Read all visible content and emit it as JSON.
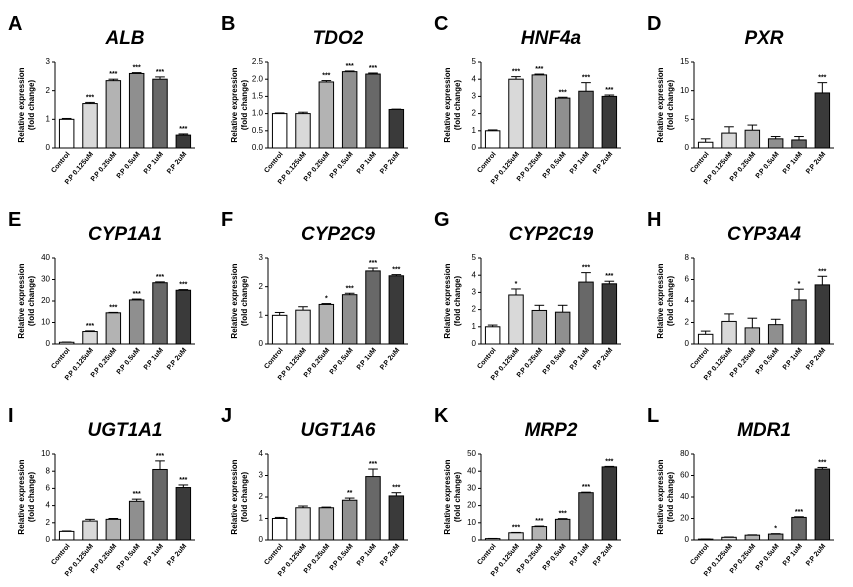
{
  "chart_data": [
    {
      "type": "bar",
      "panel": "A",
      "title": "ALB",
      "ylabel": [
        "Relative expression",
        "(fold change)"
      ],
      "categories": [
        "Control",
        "P.P 0.125uM",
        "P.P 0.25uM",
        "P.P 0.5uM",
        "P.P 1uM",
        "P.P 2uM"
      ],
      "values": [
        1.0,
        1.55,
        2.35,
        2.6,
        2.4,
        0.45
      ],
      "errors": [
        0.03,
        0.04,
        0.05,
        0.03,
        0.08,
        0.04
      ],
      "significance": [
        null,
        "***",
        "***",
        "***",
        "***",
        "***"
      ],
      "colors": [
        "#ffffff",
        "#d9d9d9",
        "#b3b3b3",
        "#8f8f8f",
        "#686868",
        "#3a3a3a"
      ],
      "ylim": [
        0,
        3
      ],
      "yticks": [
        0,
        1,
        2,
        3
      ]
    },
    {
      "type": "bar",
      "panel": "B",
      "title": "TDO2",
      "ylabel": [
        "Relative expression",
        "(fold change)"
      ],
      "categories": [
        "Control",
        "P.P 0.125uM",
        "P.P 0.25uM",
        "P.P 0.5uM",
        "P.P 1uM",
        "P.P 2uM"
      ],
      "values": [
        1.0,
        1.0,
        1.92,
        2.22,
        2.15,
        1.12
      ],
      "errors": [
        0.02,
        0.04,
        0.04,
        0.02,
        0.03,
        0.01
      ],
      "significance": [
        null,
        null,
        "***",
        "***",
        "***",
        null
      ],
      "colors": [
        "#ffffff",
        "#d9d9d9",
        "#b3b3b3",
        "#8f8f8f",
        "#686868",
        "#3a3a3a"
      ],
      "ylim": [
        0,
        2.5
      ],
      "yticks": [
        {
          "value": 0,
          "label": "0.0"
        },
        0.5,
        {
          "value": 1,
          "label": "1.0"
        },
        1.5,
        {
          "value": 2,
          "label": "2.0"
        },
        2.5
      ]
    },
    {
      "type": "bar",
      "panel": "C",
      "title": "HNF4a",
      "ylabel": [
        "Relative expression",
        "(fold change)"
      ],
      "categories": [
        "Control",
        "P.P 0.125uM",
        "P.P 0.25uM",
        "P.P 0.5uM",
        "P.P 1uM",
        "P.P 2uM"
      ],
      "values": [
        1.0,
        4.0,
        4.25,
        2.9,
        3.3,
        3.0
      ],
      "errors": [
        0.05,
        0.15,
        0.05,
        0.05,
        0.5,
        0.08
      ],
      "significance": [
        null,
        "***",
        "***",
        "***",
        "***",
        "***"
      ],
      "colors": [
        "#ffffff",
        "#d9d9d9",
        "#b3b3b3",
        "#8f8f8f",
        "#686868",
        "#3a3a3a"
      ],
      "ylim": [
        0,
        5
      ],
      "yticks": [
        0,
        1,
        2,
        3,
        4,
        5
      ]
    },
    {
      "type": "bar",
      "panel": "D",
      "title": "PXR",
      "ylabel": [
        "Relative expression",
        "(fold change)"
      ],
      "categories": [
        "Control",
        "P.P 0.125uM",
        "P.P 0.25uM",
        "P.P 0.5uM",
        "P.P 1uM",
        "P.P 2uM"
      ],
      "values": [
        1.0,
        2.6,
        3.1,
        1.6,
        1.4,
        9.6
      ],
      "errors": [
        0.6,
        1.1,
        0.9,
        0.4,
        0.6,
        1.8
      ],
      "significance": [
        null,
        null,
        null,
        null,
        null,
        "***"
      ],
      "colors": [
        "#ffffff",
        "#d9d9d9",
        "#b3b3b3",
        "#8f8f8f",
        "#686868",
        "#3a3a3a"
      ],
      "ylim": [
        0,
        15
      ],
      "yticks": [
        0,
        5,
        10,
        15
      ]
    },
    {
      "type": "bar",
      "panel": "E",
      "title": "CYP1A1",
      "ylabel": [
        "Relative expression",
        "(fold change)"
      ],
      "categories": [
        "Control",
        "P.P 0.125uM",
        "P.P 0.25uM",
        "P.P 0.5uM",
        "P.P 1uM",
        "P.P 2uM"
      ],
      "values": [
        0.8,
        5.8,
        14.5,
        20.5,
        28.5,
        25
      ],
      "errors": [
        0.1,
        0.3,
        0.2,
        0.4,
        0.4,
        0.3
      ],
      "significance": [
        null,
        "***",
        "***",
        "***",
        "***",
        "***"
      ],
      "colors": [
        "#ffffff",
        "#d9d9d9",
        "#b3b3b3",
        "#8f8f8f",
        "#686868",
        "#3a3a3a"
      ],
      "ylim": [
        0,
        40
      ],
      "yticks": [
        0,
        10,
        20,
        30,
        40
      ]
    },
    {
      "type": "bar",
      "panel": "F",
      "title": "CYP2C9",
      "ylabel": [
        "Relative expression",
        "(fold change)"
      ],
      "categories": [
        "Control",
        "P.P 0.125uM",
        "P.P 0.25uM",
        "P.P 0.5uM",
        "P.P 1uM",
        "P.P 2uM"
      ],
      "values": [
        1.0,
        1.18,
        1.38,
        1.72,
        2.55,
        2.38
      ],
      "errors": [
        0.1,
        0.12,
        0.03,
        0.05,
        0.1,
        0.04
      ],
      "significance": [
        null,
        null,
        "*",
        "***",
        "***",
        "***"
      ],
      "colors": [
        "#ffffff",
        "#d9d9d9",
        "#b3b3b3",
        "#8f8f8f",
        "#686868",
        "#3a3a3a"
      ],
      "ylim": [
        0,
        3
      ],
      "yticks": [
        0,
        1,
        2,
        3
      ]
    },
    {
      "type": "bar",
      "panel": "G",
      "title": "CYP2C19",
      "ylabel": [
        "Relative expression",
        "(fold change)"
      ],
      "categories": [
        "Control",
        "P.P 0.125uM",
        "P.P 0.25uM",
        "P.P 0.5uM",
        "P.P 1uM",
        "P.P 2uM"
      ],
      "values": [
        1.0,
        2.85,
        1.95,
        1.85,
        3.6,
        3.5
      ],
      "errors": [
        0.1,
        0.35,
        0.3,
        0.4,
        0.55,
        0.15
      ],
      "significance": [
        null,
        "*",
        null,
        null,
        "***",
        "***"
      ],
      "colors": [
        "#ffffff",
        "#d9d9d9",
        "#b3b3b3",
        "#8f8f8f",
        "#686868",
        "#3a3a3a"
      ],
      "ylim": [
        0,
        5
      ],
      "yticks": [
        0,
        1,
        2,
        3,
        4,
        5
      ]
    },
    {
      "type": "bar",
      "panel": "H",
      "title": "CYP3A4",
      "ylabel": [
        "Relative expression",
        "(fold change)"
      ],
      "categories": [
        "Control",
        "P.P 0.125uM",
        "P.P 0.25uM",
        "P.P 0.5uM",
        "P.P 1uM",
        "P.P 2uM"
      ],
      "values": [
        0.9,
        2.1,
        1.5,
        1.8,
        4.1,
        5.5
      ],
      "errors": [
        0.3,
        0.7,
        0.9,
        0.5,
        1.0,
        0.8
      ],
      "significance": [
        null,
        null,
        null,
        null,
        "*",
        "***"
      ],
      "colors": [
        "#ffffff",
        "#d9d9d9",
        "#b3b3b3",
        "#8f8f8f",
        "#686868",
        "#3a3a3a"
      ],
      "ylim": [
        0,
        8
      ],
      "yticks": [
        0,
        2,
        4,
        6,
        8
      ]
    },
    {
      "type": "bar",
      "panel": "I",
      "title": "UGT1A1",
      "ylabel": [
        "Relative expression",
        "(fold change)"
      ],
      "categories": [
        "Control",
        "P.P 0.125uM",
        "P.P 0.25uM",
        "P.P 0.5uM",
        "P.P 1uM",
        "P.P 2uM"
      ],
      "values": [
        1.0,
        2.2,
        2.4,
        4.5,
        8.2,
        6.1
      ],
      "errors": [
        0.05,
        0.2,
        0.1,
        0.25,
        1.0,
        0.3
      ],
      "significance": [
        null,
        null,
        null,
        "***",
        "***",
        "***"
      ],
      "colors": [
        "#ffffff",
        "#d9d9d9",
        "#b3b3b3",
        "#8f8f8f",
        "#686868",
        "#3a3a3a"
      ],
      "ylim": [
        0,
        10
      ],
      "yticks": [
        0,
        2,
        4,
        6,
        8,
        10
      ]
    },
    {
      "type": "bar",
      "panel": "J",
      "title": "UGT1A6",
      "ylabel": [
        "Relative expression",
        "(fold change)"
      ],
      "categories": [
        "Control",
        "P.P 0.125uM",
        "P.P 0.25uM",
        "P.P 0.5uM",
        "P.P 1uM",
        "P.P 2uM"
      ],
      "values": [
        1.0,
        1.5,
        1.5,
        1.85,
        2.95,
        2.05
      ],
      "errors": [
        0.05,
        0.08,
        0.03,
        0.1,
        0.35,
        0.15
      ],
      "significance": [
        null,
        null,
        null,
        "**",
        "***",
        "***"
      ],
      "colors": [
        "#ffffff",
        "#d9d9d9",
        "#b3b3b3",
        "#8f8f8f",
        "#686868",
        "#3a3a3a"
      ],
      "ylim": [
        0,
        4
      ],
      "yticks": [
        0,
        1,
        2,
        3,
        4
      ]
    },
    {
      "type": "bar",
      "panel": "K",
      "title": "MRP2",
      "ylabel": [
        "Relative expression",
        "(fold change)"
      ],
      "categories": [
        "Control",
        "P.P 0.125uM",
        "P.P 0.25uM",
        "P.P 0.5uM",
        "P.P 1uM",
        "P.P 2uM"
      ],
      "values": [
        0.8,
        4.2,
        7.8,
        12,
        27.5,
        42.5
      ],
      "errors": [
        0.1,
        0.2,
        0.3,
        0.4,
        0.3,
        0.3
      ],
      "significance": [
        null,
        "***",
        "***",
        "***",
        "***",
        "***"
      ],
      "colors": [
        "#ffffff",
        "#d9d9d9",
        "#b3b3b3",
        "#8f8f8f",
        "#686868",
        "#3a3a3a"
      ],
      "ylim": [
        0,
        50
      ],
      "yticks": [
        0,
        10,
        20,
        30,
        40,
        50
      ]
    },
    {
      "type": "bar",
      "panel": "L",
      "title": "MDR1",
      "ylabel": [
        "Relative expression",
        "(fold change)"
      ],
      "categories": [
        "Control",
        "P.P 0.125uM",
        "P.P 0.25uM",
        "P.P 0.5uM",
        "P.P 1uM",
        "P.P 2uM"
      ],
      "values": [
        0.8,
        2.5,
        4.5,
        5.5,
        21,
        66
      ],
      "errors": [
        0.1,
        0.3,
        0.3,
        0.4,
        0.6,
        1.5
      ],
      "significance": [
        null,
        null,
        null,
        "*",
        "***",
        "***"
      ],
      "colors": [
        "#ffffff",
        "#d9d9d9",
        "#b3b3b3",
        "#8f8f8f",
        "#686868",
        "#3a3a3a"
      ],
      "ylim": [
        0,
        80
      ],
      "yticks": [
        0,
        20,
        40,
        60,
        80
      ]
    }
  ]
}
